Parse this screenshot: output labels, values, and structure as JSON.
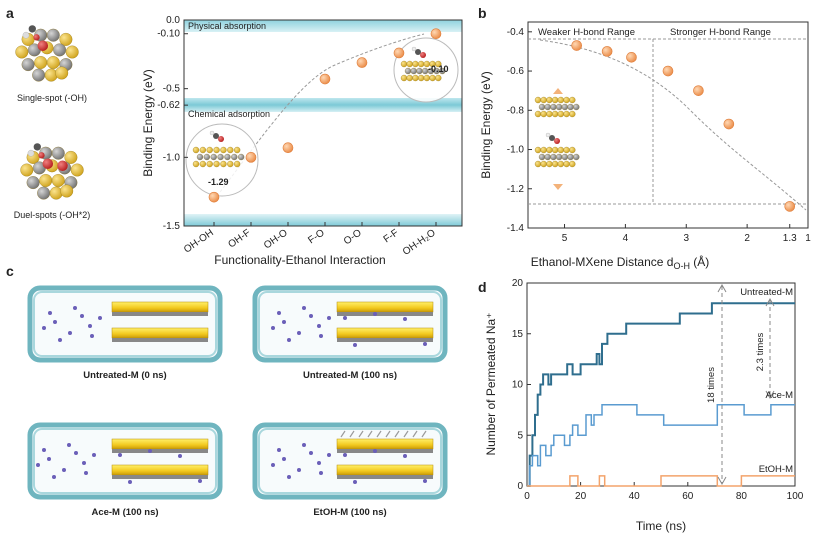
{
  "panels": {
    "a": {
      "label": "a",
      "single_spot_caption": "Single-spot (-OH)",
      "duel_spots_caption": "Duel-spots (-OH*2)"
    },
    "b": {
      "label": "b"
    },
    "c": {
      "label": "c",
      "captions": [
        "Untreated-M (0 ns)",
        "Untreated-M (100 ns)",
        "Ace-M (100 ns)",
        "EtOH-M (100 ns)"
      ]
    },
    "d": {
      "label": "d"
    }
  },
  "chart_data": [
    {
      "id": "a",
      "type": "scatter",
      "categories": [
        "OH-OH",
        "OH-F",
        "OH-O",
        "F-O",
        "O-O",
        "F-F",
        "OH-H₂O"
      ],
      "values": [
        -1.29,
        -1.0,
        -0.93,
        -0.43,
        -0.31,
        -0.24,
        -0.1
      ],
      "xlabel": "Functionality-Ethanol Interaction",
      "ylabel": "Binding Energy (eV)",
      "ylim": [
        -1.5,
        0.0
      ],
      "yticks": [
        "0.0",
        "-0.10",
        "-0.5",
        "-0.62",
        "-1.0",
        "-1.5"
      ],
      "bands": [
        {
          "label": "Physical absorption",
          "range": [
            -0.1,
            0.0
          ]
        },
        {
          "label": "Chemical adsorption",
          "range": [
            -0.62,
            -1.5
          ]
        }
      ],
      "annotations": [
        "-0.10",
        "-1.29"
      ],
      "marker_color": "#f3a36b"
    },
    {
      "id": "b",
      "type": "scatter",
      "x": [
        4.8,
        4.3,
        3.9,
        3.3,
        2.8,
        2.3,
        1.3
      ],
      "values": [
        -0.47,
        -0.5,
        -0.53,
        -0.6,
        -0.7,
        -0.87,
        -1.29
      ],
      "xlabel": "Ethanol-MXene Distance d",
      "xlabel_sub": "O-H",
      "xlabel_unit": " (Å)",
      "ylabel": "Binding Energy (eV)",
      "xlim": [
        5.6,
        1.0
      ],
      "xticks": [
        "5",
        "4",
        "3",
        "2",
        "1.3",
        "1"
      ],
      "ylim": [
        -1.4,
        -0.35
      ],
      "yticks": [
        "-0.4",
        "-0.6",
        "-0.8",
        "-1.0",
        "-1.2",
        "-1.4"
      ],
      "regions": [
        "Weaker H-bond Range",
        "Stronger H-bond Range"
      ],
      "marker_color": "#f3a36b"
    },
    {
      "id": "d",
      "type": "line",
      "xlabel": "Time (ns)",
      "ylabel": "Number of Permeated Na⁺",
      "xlim": [
        0,
        100
      ],
      "xticks": [
        "0",
        "20",
        "40",
        "60",
        "80",
        "100"
      ],
      "ylim": [
        0,
        20
      ],
      "yticks": [
        "0",
        "5",
        "10",
        "15",
        "20"
      ],
      "series": [
        {
          "name": "Untreated-M",
          "color": "#2f6e8e",
          "points": [
            [
              0,
              0
            ],
            [
              1,
              3
            ],
            [
              2,
              5
            ],
            [
              3,
              7
            ],
            [
              4,
              9
            ],
            [
              5,
              10
            ],
            [
              6,
              11
            ],
            [
              8,
              10
            ],
            [
              9,
              11
            ],
            [
              14,
              11
            ],
            [
              15,
              12
            ],
            [
              17,
              11
            ],
            [
              20,
              12
            ],
            [
              23,
              12
            ],
            [
              26,
              13
            ],
            [
              27,
              12
            ],
            [
              28,
              14
            ],
            [
              30,
              15
            ],
            [
              36,
              15
            ],
            [
              37,
              16
            ],
            [
              56,
              16
            ],
            [
              57,
              17
            ],
            [
              68,
              17
            ],
            [
              69,
              18
            ],
            [
              100,
              18
            ]
          ]
        },
        {
          "name": "Ace-M",
          "color": "#5a9bd0",
          "points": [
            [
              0,
              0
            ],
            [
              1,
              2
            ],
            [
              2,
              3
            ],
            [
              4,
              2
            ],
            [
              5,
              4
            ],
            [
              7,
              3
            ],
            [
              9,
              4
            ],
            [
              10,
              5
            ],
            [
              14,
              4
            ],
            [
              16,
              5
            ],
            [
              17,
              6
            ],
            [
              19,
              5
            ],
            [
              22,
              7
            ],
            [
              24,
              6
            ],
            [
              25,
              7
            ],
            [
              28,
              8
            ],
            [
              40,
              8
            ],
            [
              41,
              7
            ],
            [
              50,
              7
            ],
            [
              51,
              6
            ],
            [
              70,
              6
            ],
            [
              71,
              8
            ],
            [
              80,
              8
            ],
            [
              81,
              7
            ],
            [
              90,
              7
            ],
            [
              91,
              8
            ],
            [
              100,
              8
            ]
          ]
        },
        {
          "name": "EtOH-M",
          "color": "#f3a36b",
          "points": [
            [
              0,
              0
            ],
            [
              15,
              0
            ],
            [
              16,
              1
            ],
            [
              18,
              1
            ],
            [
              19,
              0
            ],
            [
              26,
              0
            ],
            [
              27,
              1
            ],
            [
              28,
              1
            ],
            [
              29,
              0
            ],
            [
              49,
              0
            ],
            [
              50,
              1
            ],
            [
              70,
              1
            ],
            [
              71,
              0
            ],
            [
              79,
              0
            ],
            [
              80,
              1
            ],
            [
              100,
              1
            ]
          ]
        }
      ],
      "annotations": [
        "18 times",
        "2.3 times"
      ]
    }
  ]
}
